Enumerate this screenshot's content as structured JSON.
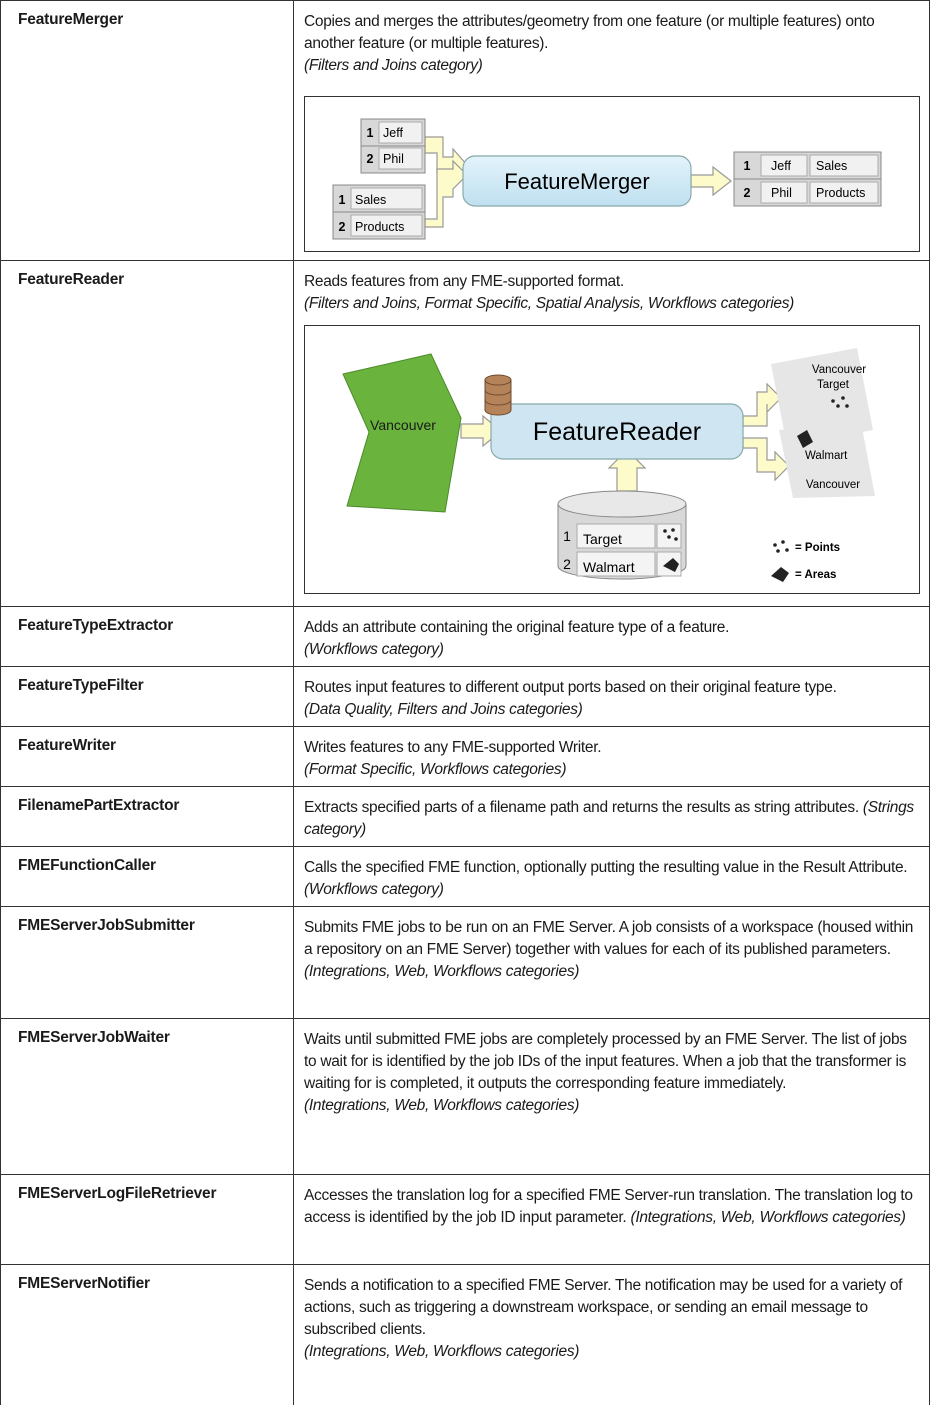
{
  "rows": [
    {
      "name": "FeatureMerger",
      "description": "Copies and merges the attributes/geometry from one feature (or multiple features) onto another feature (or multiple features).",
      "category": "(Filters and Joins category)",
      "diagram": {
        "input_a": [
          [
            "1",
            "Jeff"
          ],
          [
            "2",
            "Phil"
          ]
        ],
        "input_b": [
          [
            "1",
            "Sales"
          ],
          [
            "2",
            "Products"
          ]
        ],
        "transformer": "FeatureMerger",
        "output": [
          [
            "1",
            "Jeff",
            "Sales"
          ],
          [
            "2",
            "Phil",
            "Products"
          ]
        ]
      }
    },
    {
      "name": "FeatureReader",
      "description": "Reads features from any FME-supported format.",
      "category": "(Filters and Joins, Format Specific, Spatial Analysis, Workflows categories)",
      "diagram": {
        "input": "Vancouver",
        "transformer": "FeatureReader",
        "outputs": [
          [
            "Vancouver",
            "Target"
          ],
          [
            "Walmart",
            "Vancouver"
          ]
        ],
        "database": [
          [
            "1",
            "Target"
          ],
          [
            "2",
            "Walmart"
          ]
        ],
        "legend": [
          "= Points",
          "= Areas"
        ]
      }
    },
    {
      "name": "FeatureTypeExtractor",
      "description": "Adds an attribute containing the original feature type of a feature.",
      "category": "(Workflows category)"
    },
    {
      "name": "FeatureTypeFilter",
      "description": "Routes input features to different output ports based on their original feature type.",
      "category": "(Data Quality, Filters and Joins categories)"
    },
    {
      "name": "FeatureWriter",
      "description": "Writes features to any FME-supported Writer.",
      "category": "(Format Specific, Workflows categories)"
    },
    {
      "name": "FilenamePartExtractor",
      "description": "Extracts specified parts of a filename path and returns the results as string attributes.",
      "category": "(Strings category)"
    },
    {
      "name": "FMEFunctionCaller",
      "description": "Calls the specified FME function, optionally putting the resulting value in the Result Attribute.",
      "category": "(Workflows category)"
    },
    {
      "name": "FMEServerJobSubmitter",
      "description": "Submits FME jobs to be run on an FME Server. A job consists of a workspace (housed within a repository on an FME Server) together with values for each of its published parameters.",
      "category": "(Integrations, Web, Workflows categories)"
    },
    {
      "name": "FMEServerJobWaiter",
      "description": "Waits until submitted FME jobs are completely processed by an FME Server. The list of jobs to wait for is identified by the job IDs of the input features. When a job that the transformer is waiting for is completed, it outputs the corresponding feature immediately.",
      "category": "(Integrations, Web, Workflows categories)"
    },
    {
      "name": "FMEServerLogFileRetriever",
      "description": "Accesses the translation log for a specified FME Server-run translation. The translation log to access is identified by the job ID input parameter.",
      "category": "(Integrations, Web, Workflows categories)"
    },
    {
      "name": "FMEServerNotifier",
      "description": "Sends a notification to a specified FME Server. The notification may be used for a variety of actions, such as triggering a downstream workspace, or sending an email message to subscribed clients.",
      "category": "(Integrations, Web, Workflows categories)"
    }
  ]
}
